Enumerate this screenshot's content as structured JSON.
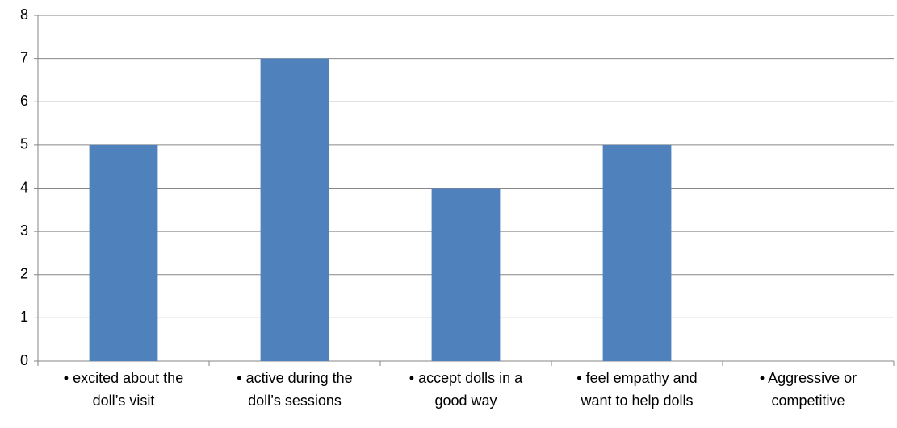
{
  "chart_data": {
    "type": "bar",
    "categories": [
      [
        "• excited about the",
        "doll’s visit"
      ],
      [
        "• active during the",
        "doll’s sessions"
      ],
      [
        "• accept dolls in a",
        "good way"
      ],
      [
        "• feel empathy and",
        "want to help dolls"
      ],
      [
        "• Aggressive or",
        "competitive"
      ]
    ],
    "values": [
      5,
      7,
      4,
      5,
      0
    ],
    "color": "#4f81bd",
    "ylim": [
      0,
      8
    ],
    "yticks": [
      0,
      1,
      2,
      3,
      4,
      5,
      6,
      7,
      8
    ],
    "grid": true
  }
}
